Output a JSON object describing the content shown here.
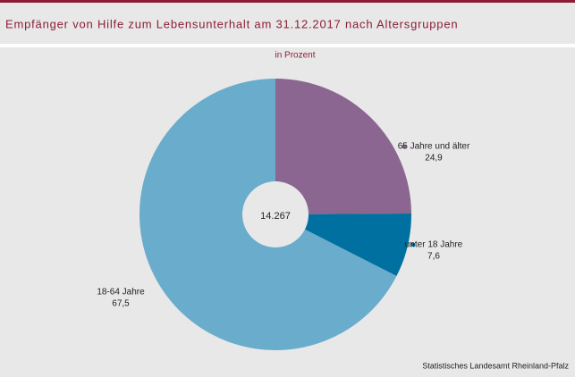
{
  "chart_data": {
    "type": "pie",
    "title": "Empfänger von Hilfe zum Lebensunterhalt am 31.12.2017 nach Altersgruppen",
    "subtitle": "in Prozent",
    "categories": [
      "65 Jahre und älter",
      "unter 18 Jahre",
      "18-64 Jahre"
    ],
    "values": [
      24.9,
      7.6,
      67.5
    ],
    "value_labels": [
      "24,9",
      "7,6",
      "67,5"
    ],
    "colors": [
      "#8b6690",
      "#0070a0",
      "#6aaccb"
    ],
    "center_label": "14.267",
    "source": "Statistisches Landesamt Rheinland-Pfalz"
  }
}
